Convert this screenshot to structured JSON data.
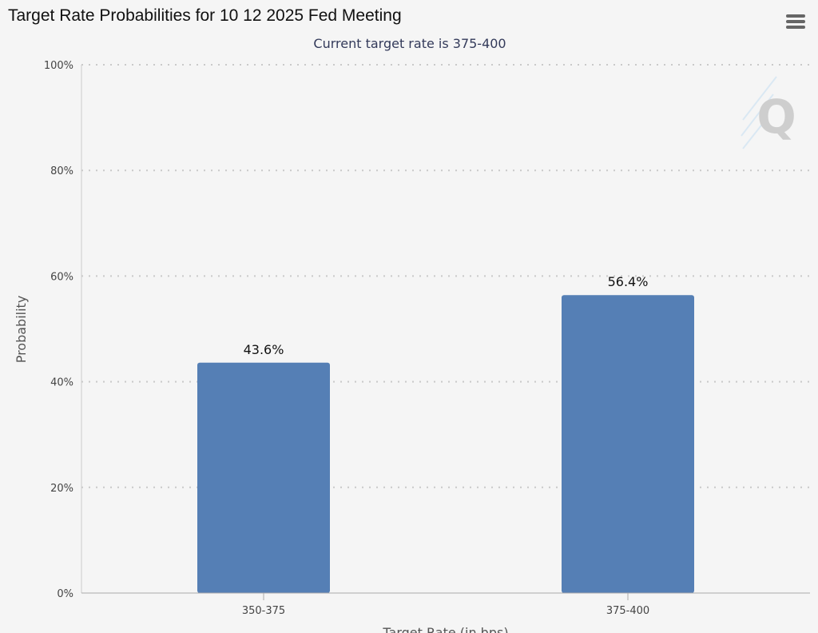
{
  "header": {
    "title": "Target Rate Probabilities for 10 12 2025 Fed Meeting",
    "menu_icon": "hamburger-menu-icon"
  },
  "watermark": {
    "letter": "Q",
    "icon": "quikstrike-logo-icon"
  },
  "chart_data": {
    "type": "bar",
    "title": "Target Rate Probabilities for 10 12 2025 Fed Meeting",
    "subtitle": "Current target rate is 375-400",
    "xlabel": "Target Rate (in bps)",
    "ylabel": "Probability",
    "categories": [
      "350-375",
      "375-400"
    ],
    "values": [
      43.6,
      56.4
    ],
    "data_labels": [
      "43.6%",
      "56.4%"
    ],
    "ylim": [
      0,
      100
    ],
    "yticks": [
      0,
      20,
      40,
      60,
      80,
      100
    ],
    "ytick_labels": [
      "0%",
      "20%",
      "40%",
      "60%",
      "80%",
      "100%"
    ],
    "grid": true,
    "legend": "none",
    "bar_color": "#557fb5"
  }
}
